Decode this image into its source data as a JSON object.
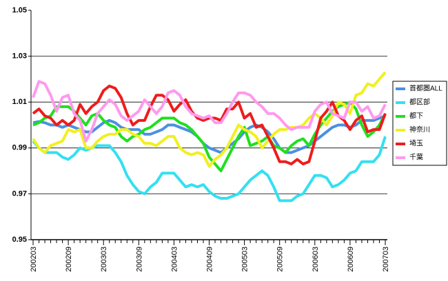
{
  "chart_data": {
    "type": "line",
    "categories": [
      "200203",
      null,
      null,
      null,
      null,
      null,
      "200209",
      null,
      null,
      null,
      null,
      null,
      "200303",
      null,
      null,
      null,
      null,
      null,
      "200309",
      null,
      null,
      null,
      null,
      null,
      "200403",
      null,
      null,
      null,
      null,
      null,
      "200409",
      null,
      null,
      null,
      null,
      null,
      "200503",
      null,
      null,
      null,
      null,
      null,
      "200509",
      null,
      null,
      null,
      null,
      null,
      "200603",
      null,
      null,
      null,
      null,
      null,
      "200609",
      null,
      null,
      null,
      null,
      null,
      "200703"
    ],
    "ylim": [
      0.95,
      1.05
    ],
    "yticks": [
      0.95,
      0.97,
      0.99,
      1.01,
      1.03,
      1.05
    ],
    "grid": true,
    "legend": "right",
    "series": [
      {
        "name": "首都圏ALL",
        "color": "#4a90e2",
        "values": [
          1.001,
          1.0015,
          1.001,
          1.0,
          1.0,
          0.999,
          1.0,
          0.999,
          0.998,
          0.997,
          0.997,
          0.999,
          1.001,
          1.002,
          1.001,
          0.999,
          0.998,
          0.998,
          0.998,
          0.996,
          0.996,
          0.997,
          0.998,
          1.0,
          1.0,
          0.999,
          0.998,
          0.997,
          0.995,
          0.992,
          0.99,
          0.989,
          0.988,
          0.99,
          0.992,
          0.994,
          0.997,
          0.999,
          1.0,
          0.999,
          0.997,
          0.994,
          0.99,
          0.988,
          0.988,
          0.989,
          0.99,
          0.991,
          0.993,
          0.995,
          0.997,
          0.999,
          1.0,
          1.0,
          0.999,
          1.0,
          1.002,
          1.002,
          1.002,
          1.003,
          1.004
        ]
      },
      {
        "name": "都区部",
        "color": "#33e0f0",
        "values": [
          0.993,
          0.99,
          0.988,
          0.988,
          0.988,
          0.986,
          0.985,
          0.987,
          0.99,
          0.989,
          0.99,
          0.991,
          0.991,
          0.991,
          0.988,
          0.984,
          0.978,
          0.974,
          0.971,
          0.97,
          0.973,
          0.975,
          0.979,
          0.979,
          0.979,
          0.976,
          0.973,
          0.974,
          0.973,
          0.974,
          0.971,
          0.969,
          0.968,
          0.968,
          0.969,
          0.97,
          0.973,
          0.976,
          0.978,
          0.98,
          0.978,
          0.973,
          0.967,
          0.967,
          0.967,
          0.969,
          0.97,
          0.974,
          0.978,
          0.978,
          0.977,
          0.973,
          0.974,
          0.976,
          0.979,
          0.98,
          0.984,
          0.984,
          0.984,
          0.987,
          0.995
        ]
      },
      {
        "name": "都下",
        "color": "#1ee01e",
        "values": [
          1.0,
          1.001,
          1.003,
          1.004,
          1.008,
          1.008,
          1.008,
          1.006,
          1.003,
          1.0,
          1.004,
          1.005,
          1.002,
          1.0,
          0.999,
          0.995,
          0.993,
          0.995,
          0.996,
          0.998,
          0.999,
          1.001,
          1.003,
          1.003,
          1.003,
          1.001,
          1.0,
          0.998,
          0.995,
          0.992,
          0.986,
          0.983,
          0.98,
          0.985,
          0.99,
          0.995,
          0.999,
          0.991,
          0.992,
          0.993,
          0.995,
          0.991,
          0.99,
          0.988,
          0.991,
          0.993,
          0.994,
          0.991,
          0.996,
          1.0,
          1.003,
          1.006,
          1.008,
          1.009,
          1.01,
          1.007,
          1.0,
          0.995,
          0.997,
          1.0,
          1.005
        ]
      },
      {
        "name": "神奈川",
        "color": "#f0f020",
        "values": [
          0.994,
          0.99,
          0.988,
          0.991,
          0.992,
          0.993,
          0.998,
          0.997,
          0.998,
          0.99,
          0.99,
          0.993,
          0.995,
          0.996,
          0.996,
          0.998,
          0.998,
          0.996,
          0.995,
          0.992,
          0.992,
          0.991,
          0.993,
          0.995,
          0.995,
          0.99,
          0.988,
          0.987,
          0.988,
          0.987,
          0.982,
          0.985,
          0.987,
          0.99,
          0.995,
          1.0,
          0.998,
          0.997,
          0.995,
          0.99,
          0.993,
          0.996,
          0.998,
          0.998,
          0.999,
          0.999,
          1.0,
          1.003,
          1.005,
          1.003,
          1.0,
          1.004,
          1.01,
          1.009,
          1.005,
          1.013,
          1.014,
          1.018,
          1.017,
          1.02,
          1.023
        ]
      },
      {
        "name": "埼玉",
        "color": "#ee1c1c",
        "values": [
          1.005,
          1.007,
          1.004,
          1.003,
          1.0,
          1.002,
          1.0,
          1.002,
          1.009,
          1.005,
          1.008,
          1.01,
          1.015,
          1.017,
          1.016,
          1.012,
          1.005,
          1.0,
          1.002,
          1.002,
          1.008,
          1.013,
          1.013,
          1.011,
          1.006,
          1.009,
          1.011,
          1.006,
          1.003,
          1.002,
          1.003,
          1.003,
          1.002,
          1.007,
          1.007,
          1.01,
          1.003,
          1.005,
          0.999,
          1.0,
          0.995,
          0.99,
          0.984,
          0.984,
          0.983,
          0.985,
          0.983,
          0.984,
          0.993,
          1.003,
          1.006,
          1.01,
          1.004,
          1.002,
          0.998,
          1.002,
          1.004,
          0.997,
          0.998,
          0.998,
          1.005
        ]
      },
      {
        "name": "千葉",
        "color": "#ff99ee",
        "values": [
          1.012,
          1.019,
          1.018,
          1.013,
          1.006,
          1.012,
          1.013,
          1.005,
          1.002,
          0.993,
          0.998,
          1.005,
          1.008,
          1.011,
          1.009,
          1.004,
          1.002,
          1.004,
          1.006,
          1.011,
          1.008,
          1.005,
          1.008,
          1.014,
          1.015,
          1.013,
          1.008,
          1.005,
          1.004,
          1.003,
          1.004,
          1.001,
          1.001,
          1.005,
          1.01,
          1.014,
          1.014,
          1.013,
          1.01,
          1.008,
          1.005,
          1.005,
          1.003,
          1.0,
          0.998,
          0.999,
          0.999,
          0.999,
          1.006,
          1.009,
          1.01,
          1.005,
          1.004,
          1.003,
          1.01,
          1.01,
          1.006,
          1.008,
          1.003,
          1.004,
          1.009
        ]
      }
    ]
  }
}
